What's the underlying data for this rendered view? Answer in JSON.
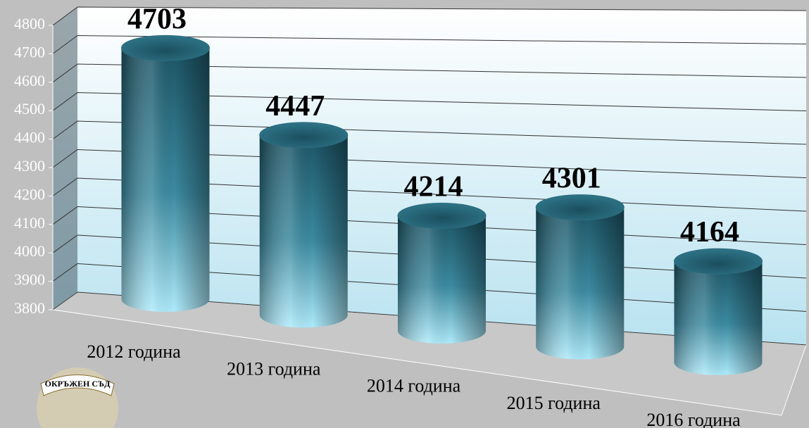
{
  "chart_data": {
    "type": "bar3d",
    "categories": [
      "2012 година",
      "2013 година",
      "2014 година",
      "2015 година",
      "2016 година"
    ],
    "values": [
      4703,
      4447,
      4214,
      4301,
      4164
    ],
    "color": "#1f5f70",
    "ylim": [
      3800,
      4800
    ],
    "yticks": [
      3800,
      3900,
      4000,
      4100,
      4200,
      4300,
      4400,
      4500,
      4600,
      4700,
      4800
    ],
    "grid": true
  },
  "logo": {
    "text": "ОКРЪЖЕН СЪД"
  }
}
